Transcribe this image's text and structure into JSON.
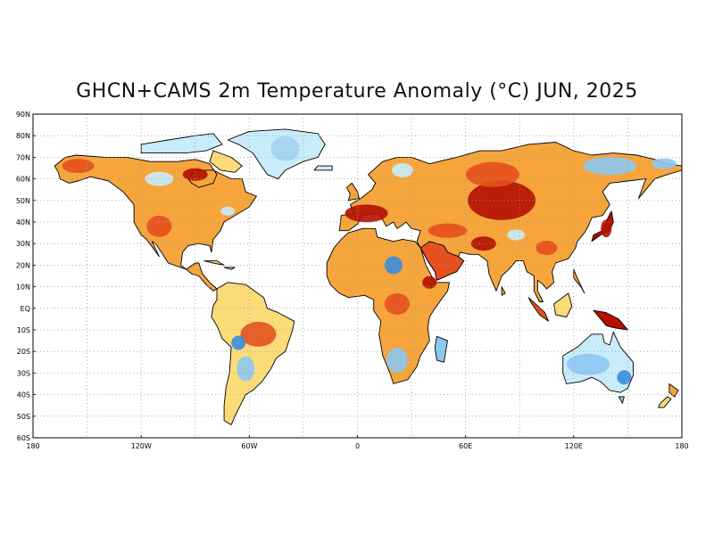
{
  "title": "GHCN+CAMS 2m Temperature Anomaly (°C) JUN, 2025",
  "axes": {
    "lat_labels": [
      "90N",
      "80N",
      "70N",
      "60N",
      "50N",
      "40N",
      "30N",
      "20N",
      "10N",
      "EQ",
      "10S",
      "20S",
      "30S",
      "40S",
      "50S",
      "60S"
    ],
    "lon_labels": [
      "180",
      "120W",
      "60W",
      "0",
      "60E",
      "120E",
      "180"
    ],
    "grid": "dotted"
  },
  "colors": {
    "frame": "#000000",
    "coast": "#000000",
    "gridline": "#9a9a9a",
    "strong_warm": "#b40f00",
    "warm": "#e6501e",
    "mild_warm": "#f5a53c",
    "slight_warm": "#fcdc78",
    "near_normal": "#fff8c8",
    "slight_cool": "#c8ecfa",
    "cool": "#8cc8f0",
    "strong_cool": "#3c8cdc"
  }
}
